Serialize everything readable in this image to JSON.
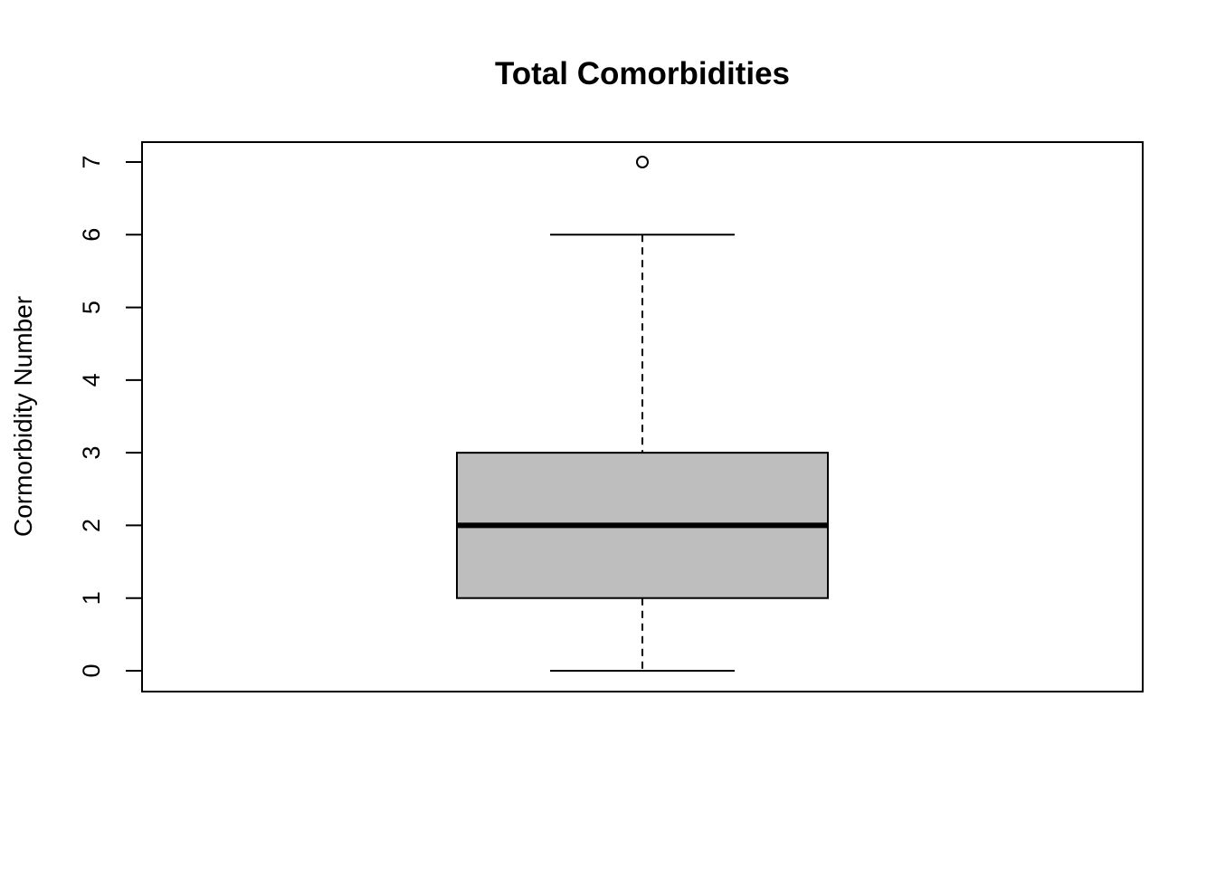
{
  "chart_data": {
    "type": "box",
    "title": "Total Comorbidities",
    "xlabel": "",
    "ylabel": "Cormorbidity Number",
    "ylim": [
      0,
      7
    ],
    "yticks": [
      "0",
      "1",
      "2",
      "3",
      "4",
      "5",
      "6",
      "7"
    ],
    "grid": false,
    "box": {
      "min": 0,
      "q1": 1,
      "median": 2,
      "q3": 3,
      "max": 6,
      "outliers": [
        7
      ],
      "fill": "#bebebe"
    }
  }
}
